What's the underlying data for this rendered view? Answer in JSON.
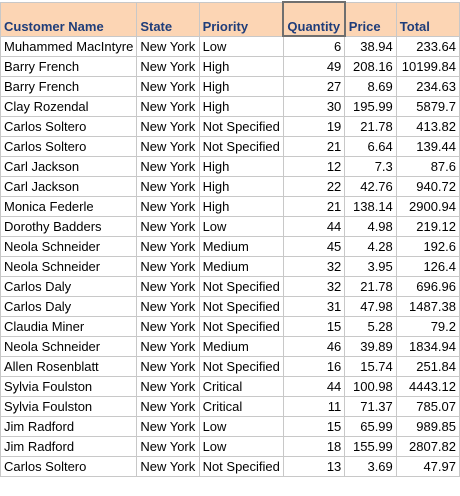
{
  "columns": {
    "customer_name": "Customer Name",
    "state": "State",
    "priority": "Priority",
    "quantity": "Quantity",
    "price": "Price",
    "total": "Total"
  },
  "rows": [
    {
      "customer": "Muhammed MacIntyre",
      "state": "New York",
      "priority": "Low",
      "quantity": "6",
      "price": "38.94",
      "total": "233.64"
    },
    {
      "customer": "Barry French",
      "state": "New York",
      "priority": "High",
      "quantity": "49",
      "price": "208.16",
      "total": "10199.84"
    },
    {
      "customer": "Barry French",
      "state": "New York",
      "priority": "High",
      "quantity": "27",
      "price": "8.69",
      "total": "234.63"
    },
    {
      "customer": "Clay Rozendal",
      "state": "New York",
      "priority": "High",
      "quantity": "30",
      "price": "195.99",
      "total": "5879.7"
    },
    {
      "customer": "Carlos Soltero",
      "state": "New York",
      "priority": "Not Specified",
      "quantity": "19",
      "price": "21.78",
      "total": "413.82"
    },
    {
      "customer": "Carlos Soltero",
      "state": "New York",
      "priority": "Not Specified",
      "quantity": "21",
      "price": "6.64",
      "total": "139.44"
    },
    {
      "customer": "Carl Jackson",
      "state": "New York",
      "priority": "High",
      "quantity": "12",
      "price": "7.3",
      "total": "87.6"
    },
    {
      "customer": "Carl Jackson",
      "state": "New York",
      "priority": "High",
      "quantity": "22",
      "price": "42.76",
      "total": "940.72"
    },
    {
      "customer": "Monica Federle",
      "state": "New York",
      "priority": "High",
      "quantity": "21",
      "price": "138.14",
      "total": "2900.94"
    },
    {
      "customer": "Dorothy Badders",
      "state": "New York",
      "priority": "Low",
      "quantity": "44",
      "price": "4.98",
      "total": "219.12"
    },
    {
      "customer": "Neola Schneider",
      "state": "New York",
      "priority": "Medium",
      "quantity": "45",
      "price": "4.28",
      "total": "192.6"
    },
    {
      "customer": "Neola Schneider",
      "state": "New York",
      "priority": "Medium",
      "quantity": "32",
      "price": "3.95",
      "total": "126.4"
    },
    {
      "customer": "Carlos Daly",
      "state": "New York",
      "priority": "Not Specified",
      "quantity": "32",
      "price": "21.78",
      "total": "696.96"
    },
    {
      "customer": "Carlos Daly",
      "state": "New York",
      "priority": "Not Specified",
      "quantity": "31",
      "price": "47.98",
      "total": "1487.38"
    },
    {
      "customer": "Claudia Miner",
      "state": "New York",
      "priority": "Not Specified",
      "quantity": "15",
      "price": "5.28",
      "total": "79.2"
    },
    {
      "customer": "Neola Schneider",
      "state": "New York",
      "priority": "Medium",
      "quantity": "46",
      "price": "39.89",
      "total": "1834.94"
    },
    {
      "customer": "Allen Rosenblatt",
      "state": "New York",
      "priority": "Not Specified",
      "quantity": "16",
      "price": "15.74",
      "total": "251.84"
    },
    {
      "customer": "Sylvia Foulston",
      "state": "New York",
      "priority": "Critical",
      "quantity": "44",
      "price": "100.98",
      "total": "4443.12"
    },
    {
      "customer": "Sylvia Foulston",
      "state": "New York",
      "priority": "Critical",
      "quantity": "11",
      "price": "71.37",
      "total": "785.07"
    },
    {
      "customer": "Jim Radford",
      "state": "New York",
      "priority": "Low",
      "quantity": "15",
      "price": "65.99",
      "total": "989.85"
    },
    {
      "customer": "Jim Radford",
      "state": "New York",
      "priority": "Low",
      "quantity": "18",
      "price": "155.99",
      "total": "2807.82"
    },
    {
      "customer": "Carlos Soltero",
      "state": "New York",
      "priority": "Not Specified",
      "quantity": "13",
      "price": "3.69",
      "total": "47.97"
    }
  ]
}
